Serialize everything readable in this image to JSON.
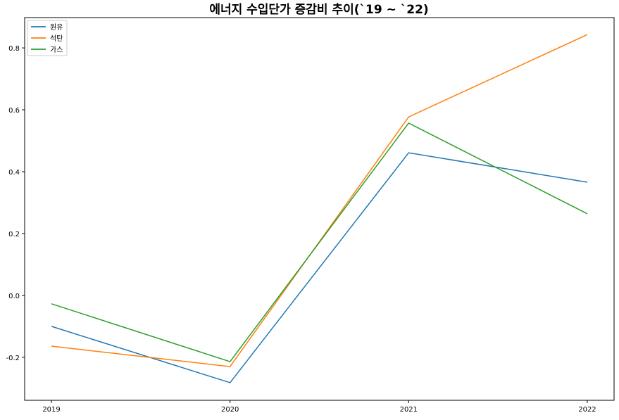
{
  "chart_data": {
    "type": "line",
    "title": "에너지 수입단가 증감비 추이(`19 ~ `22)",
    "xlabel": "",
    "ylabel": "",
    "x": [
      "2019",
      "2020",
      "2021",
      "2022"
    ],
    "xlim": [
      2018.85,
      2022.15
    ],
    "ylim": [
      -0.339,
      0.898
    ],
    "yticks": [
      "-0.2",
      "0.0",
      "0.2",
      "0.4",
      "0.6",
      "0.8"
    ],
    "grid": false,
    "legend_position": "top-left",
    "series": [
      {
        "name": "원유",
        "color": "#1f77b4",
        "values": [
          -0.1,
          -0.282,
          0.461,
          0.366
        ]
      },
      {
        "name": "석탄",
        "color": "#ff7f0e",
        "values": [
          -0.164,
          -0.23,
          0.577,
          0.843
        ]
      },
      {
        "name": "가스",
        "color": "#2ca02c",
        "values": [
          -0.027,
          -0.214,
          0.557,
          0.264
        ]
      }
    ]
  }
}
